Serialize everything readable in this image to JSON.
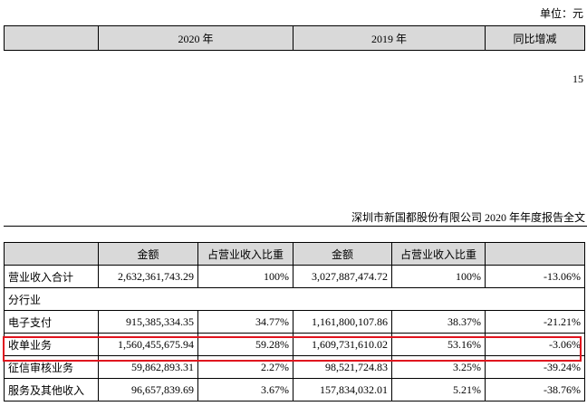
{
  "unit_label": "单位：元",
  "top_table": {
    "headers": [
      "",
      "2020 年",
      "2019 年",
      "同比增减"
    ]
  },
  "page_number": "15",
  "report_header": "深圳市新国都股份有限公司 2020 年年度报告全文",
  "main_table": {
    "headers": [
      "",
      "金额",
      "占营业收入比重",
      "金额",
      "占营业收入比重",
      ""
    ],
    "rows": [
      {
        "label": "营业收入合计",
        "amount_2020": "2,632,361,743.29",
        "ratio_2020": "100%",
        "amount_2019": "3,027,887,474.72",
        "ratio_2019": "100%",
        "change": "-13.06%"
      },
      {
        "label": "分行业"
      },
      {
        "label": "电子支付",
        "amount_2020": "915,385,334.35",
        "ratio_2020": "34.77%",
        "amount_2019": "1,161,800,107.86",
        "ratio_2019": "38.37%",
        "change": "-21.21%"
      },
      {
        "label": "收单业务",
        "amount_2020": "1,560,455,675.94",
        "ratio_2020": "59.28%",
        "amount_2019": "1,609,731,610.02",
        "ratio_2019": "53.16%",
        "change": "-3.06%"
      },
      {
        "label": "征信审核业务",
        "amount_2020": "59,862,893.31",
        "ratio_2020": "2.27%",
        "amount_2019": "98,521,724.83",
        "ratio_2019": "3.25%",
        "change": "-39.24%"
      },
      {
        "label": "服务及其他收入",
        "amount_2020": "96,657,839.69",
        "ratio_2020": "3.67%",
        "amount_2019": "157,834,032.01",
        "ratio_2019": "5.21%",
        "change": "-38.76%"
      }
    ]
  },
  "highlight_color": "#e0141e"
}
